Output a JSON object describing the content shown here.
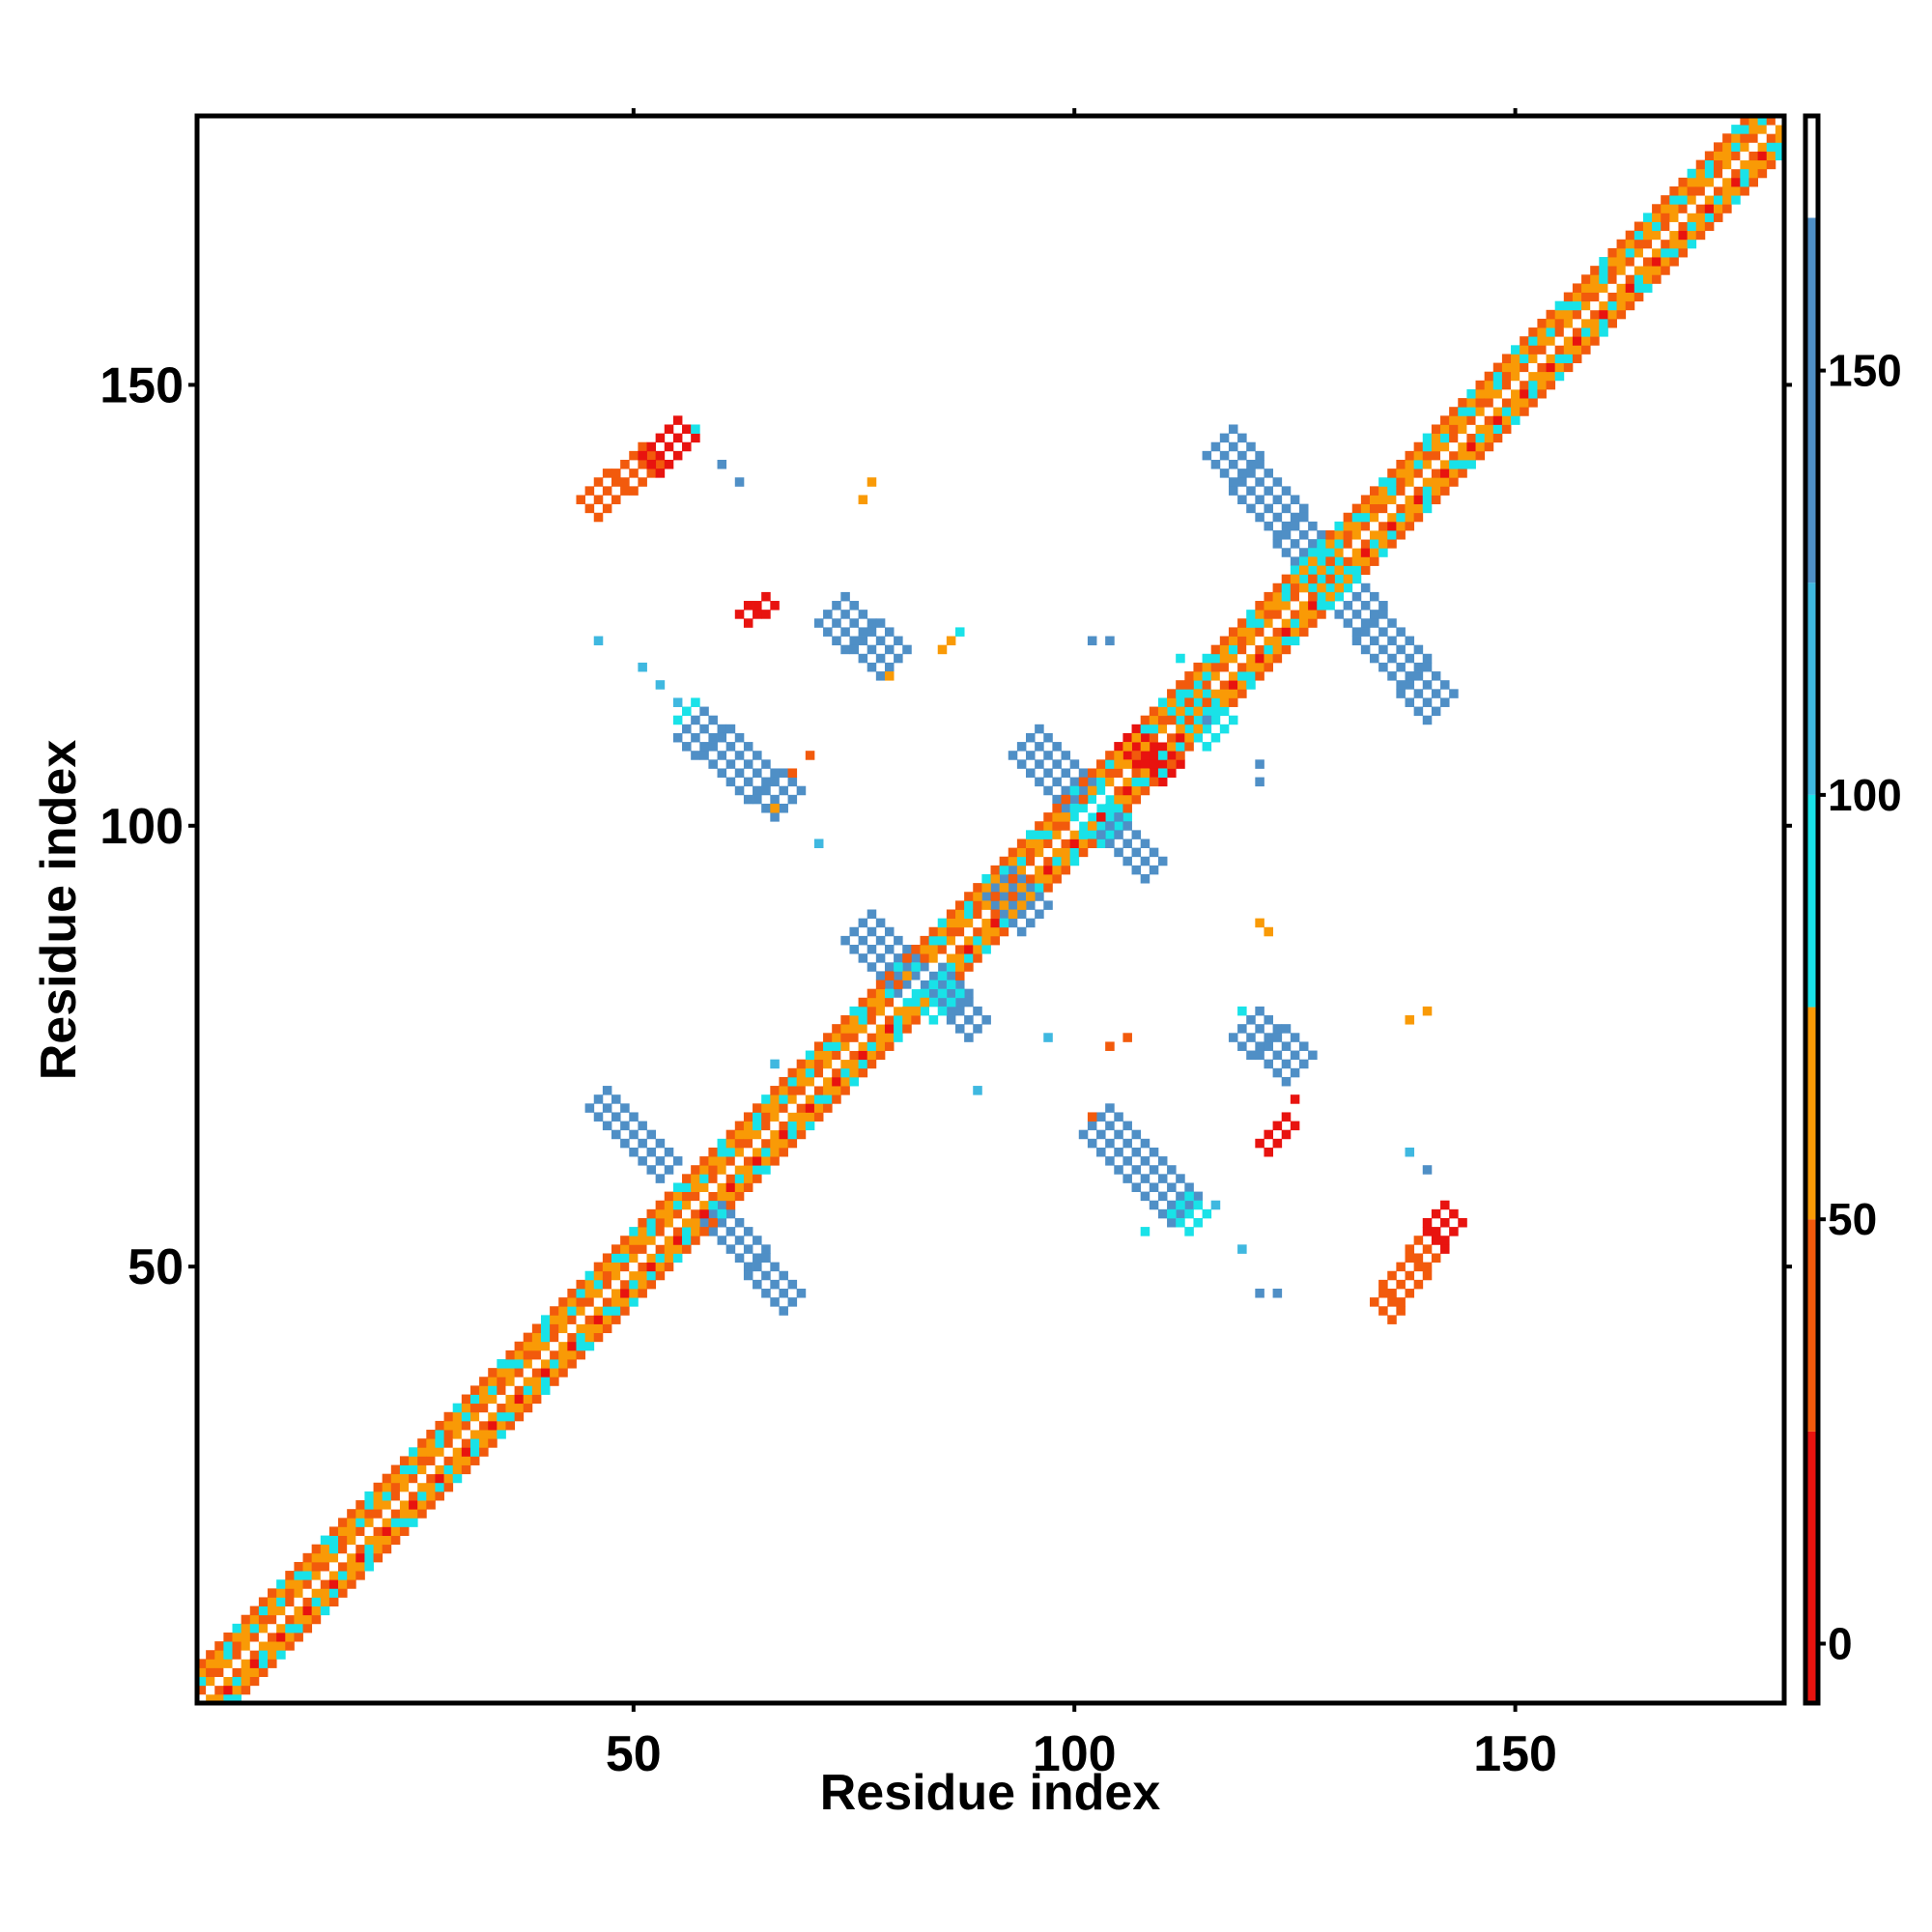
{
  "chart_data": {
    "type": "heatmap",
    "title": "",
    "xlabel": "Residue index",
    "ylabel": "Residue index",
    "n_residues": 180,
    "xlim": [
      1,
      180
    ],
    "ylim": [
      1,
      180
    ],
    "x_ticks": [
      "50",
      "100",
      "150"
    ],
    "x_tick_values": [
      50,
      100,
      150
    ],
    "y_ticks": [
      "50",
      "100",
      "150"
    ],
    "y_tick_values": [
      50,
      100,
      150
    ],
    "top_tick_values": [
      50,
      100,
      150
    ],
    "colorbar": {
      "ticks": [
        "0",
        "50",
        "100",
        "150"
      ],
      "tick_values": [
        0,
        50,
        100,
        150
      ],
      "range": [
        -7,
        180
      ],
      "bands": [
        {
          "from": -7,
          "to": 25,
          "color": "#e8130f"
        },
        {
          "from": 25,
          "to": 50,
          "color": "#f25a0c"
        },
        {
          "from": 50,
          "to": 75,
          "color": "#f99a06"
        },
        {
          "from": 75,
          "to": 100,
          "color": "#19e2e8"
        },
        {
          "from": 100,
          "to": 125,
          "color": "#3fb8e0"
        },
        {
          "from": 125,
          "to": 168,
          "color": "#4f8fc6"
        },
        {
          "from": 168,
          "to": 180,
          "color": "#ffffff"
        }
      ]
    },
    "diagonal": {
      "near_colors": [
        "#f25a0c",
        "#f99a06",
        "#e8130f"
      ],
      "mid_colors": [
        "#19e2e8",
        "#f99a06"
      ]
    },
    "segments": [
      {
        "start": [
          46,
          69
        ],
        "end": [
          54,
          61
        ],
        "color": "#4f8fc6",
        "width": 3
      },
      {
        "start": [
          59,
          56
        ],
        "end": [
          68,
          46
        ],
        "color": "#4f8fc6",
        "width": 3
      },
      {
        "start": [
          57,
          112
        ],
        "end": [
          68,
          103
        ],
        "color": "#4f8fc6",
        "width": 4
      },
      {
        "start": [
          56,
          113
        ],
        "end": [
          59,
          110
        ],
        "color": "#19e2e8",
        "width": 3
      },
      {
        "start": [
          73,
          125
        ],
        "end": [
          80,
          119
        ],
        "color": "#4f8fc6",
        "width": 4
      },
      {
        "start": [
          76,
          89
        ],
        "end": [
          82,
          83
        ],
        "color": "#4f8fc6",
        "width": 4
      },
      {
        "start": [
          84,
          83
        ],
        "end": [
          89,
          77
        ],
        "color": "#4f8fc6",
        "width": 3
      },
      {
        "start": [
          81,
          84
        ],
        "end": [
          86,
          80
        ],
        "color": "#19e2e8",
        "width": 4
      },
      {
        "start": [
          92,
          94
        ],
        "end": [
          96,
          90
        ],
        "color": "#4f8fc6",
        "width": 4
      },
      {
        "start": [
          95,
          110
        ],
        "end": [
          101,
          104
        ],
        "color": "#4f8fc6",
        "width": 4
      },
      {
        "start": [
          101,
          104
        ],
        "end": [
          105,
          100
        ],
        "color": "#19e2e8",
        "width": 4
      },
      {
        "start": [
          104,
          100
        ],
        "end": [
          109,
          95
        ],
        "color": "#4f8fc6",
        "width": 3
      },
      {
        "start": [
          113,
          115
        ],
        "end": [
          117,
          111
        ],
        "color": "#19e2e8",
        "width": 4
      },
      {
        "start": [
          117,
          144
        ],
        "end": [
          127,
          132
        ],
        "color": "#4f8fc6",
        "width": 4
      },
      {
        "start": [
          127,
          131
        ],
        "end": [
          131,
          127
        ],
        "color": "#19e2e8",
        "width": 4
      },
      {
        "start": [
          131,
          127
        ],
        "end": [
          142,
          114
        ],
        "color": "#4f8fc6",
        "width": 4
      },
      {
        "start": [
          120,
          78
        ],
        "end": [
          126,
          73
        ],
        "color": "#4f8fc6",
        "width": 4
      },
      {
        "start": [
          103,
          67
        ],
        "end": [
          113,
          57
        ],
        "color": "#4f8fc6",
        "width": 4
      },
      {
        "start": [
          110,
          58
        ],
        "end": [
          114,
          55
        ],
        "color": "#19e2e8",
        "width": 3
      },
      {
        "start": [
          45,
          136
        ],
        "end": [
          52,
          142
        ],
        "color": "#f25a0c",
        "width": 3
      },
      {
        "start": [
          52,
          141
        ],
        "end": [
          56,
          145
        ],
        "color": "#e8130f",
        "width": 3
      },
      {
        "start": [
          135,
          45
        ],
        "end": [
          140,
          52
        ],
        "color": "#f25a0c",
        "width": 3
      },
      {
        "start": [
          139,
          51
        ],
        "end": [
          143,
          56
        ],
        "color": "#e8130f",
        "width": 3
      },
      {
        "start": [
          63,
          123
        ],
        "end": [
          66,
          125
        ],
        "color": "#e8130f",
        "width": 2
      },
      {
        "start": [
          122,
          63
        ],
        "end": [
          125,
          66
        ],
        "color": "#e8130f",
        "width": 2
      },
      {
        "start": [
          106,
          110
        ],
        "end": [
          111,
          106
        ],
        "color": "#e8130f",
        "width": 3
      }
    ],
    "spots": [
      {
        "x": 57,
        "y": 145,
        "color": "#19e2e8"
      },
      {
        "x": 60,
        "y": 141,
        "color": "#4f8fc6"
      },
      {
        "x": 62,
        "y": 139,
        "color": "#4f8fc6"
      },
      {
        "x": 77,
        "y": 139,
        "color": "#f99a06"
      },
      {
        "x": 76,
        "y": 137,
        "color": "#f99a06"
      },
      {
        "x": 46,
        "y": 121,
        "color": "#3fb8e0"
      },
      {
        "x": 51,
        "y": 118,
        "color": "#3fb8e0"
      },
      {
        "x": 53,
        "y": 116,
        "color": "#3fb8e0"
      },
      {
        "x": 55,
        "y": 114,
        "color": "#3fb8e0"
      },
      {
        "x": 79,
        "y": 117,
        "color": "#f99a06"
      },
      {
        "x": 86,
        "y": 121,
        "color": "#f99a06"
      },
      {
        "x": 87,
        "y": 122,
        "color": "#19e2e8"
      },
      {
        "x": 85,
        "y": 120,
        "color": "#f99a06"
      },
      {
        "x": 70,
        "y": 108,
        "color": "#f25a0c"
      },
      {
        "x": 68,
        "y": 106,
        "color": "#f25a0c"
      },
      {
        "x": 67,
        "y": 104,
        "color": "#f99a06"
      },
      {
        "x": 66,
        "y": 102,
        "color": "#f99a06"
      },
      {
        "x": 71,
        "y": 98,
        "color": "#3fb8e0"
      },
      {
        "x": 102,
        "y": 121,
        "color": "#4f8fc6"
      },
      {
        "x": 104,
        "y": 121,
        "color": "#4f8fc6"
      },
      {
        "x": 112,
        "y": 119,
        "color": "#19e2e8"
      },
      {
        "x": 115,
        "y": 112,
        "color": "#4f8fc6"
      },
      {
        "x": 121,
        "y": 107,
        "color": "#4f8fc6"
      },
      {
        "x": 121,
        "y": 105,
        "color": "#4f8fc6"
      },
      {
        "x": 142,
        "y": 114,
        "color": "#19e2e8"
      },
      {
        "x": 121,
        "y": 89,
        "color": "#f99a06"
      },
      {
        "x": 122,
        "y": 88,
        "color": "#f99a06"
      },
      {
        "x": 138,
        "y": 78,
        "color": "#f99a06"
      },
      {
        "x": 140,
        "y": 79,
        "color": "#f99a06"
      },
      {
        "x": 119,
        "y": 79,
        "color": "#19e2e8"
      },
      {
        "x": 104,
        "y": 75,
        "color": "#f25a0c"
      },
      {
        "x": 106,
        "y": 76,
        "color": "#f25a0c"
      },
      {
        "x": 97,
        "y": 76,
        "color": "#3fb8e0"
      },
      {
        "x": 102,
        "y": 67,
        "color": "#f25a0c"
      },
      {
        "x": 108,
        "y": 54,
        "color": "#19e2e8"
      },
      {
        "x": 116,
        "y": 57,
        "color": "#3fb8e0"
      },
      {
        "x": 119,
        "y": 52,
        "color": "#3fb8e0"
      },
      {
        "x": 121,
        "y": 47,
        "color": "#4f8fc6"
      },
      {
        "x": 123,
        "y": 47,
        "color": "#4f8fc6"
      },
      {
        "x": 125,
        "y": 69,
        "color": "#e8130f"
      },
      {
        "x": 124,
        "y": 67,
        "color": "#e8130f"
      },
      {
        "x": 138,
        "y": 63,
        "color": "#3fb8e0"
      },
      {
        "x": 140,
        "y": 61,
        "color": "#4f8fc6"
      },
      {
        "x": 89,
        "y": 70,
        "color": "#3fb8e0"
      },
      {
        "x": 66,
        "y": 73,
        "color": "#3fb8e0"
      },
      {
        "x": 113,
        "y": 116,
        "color": "#f25a0c"
      }
    ]
  }
}
